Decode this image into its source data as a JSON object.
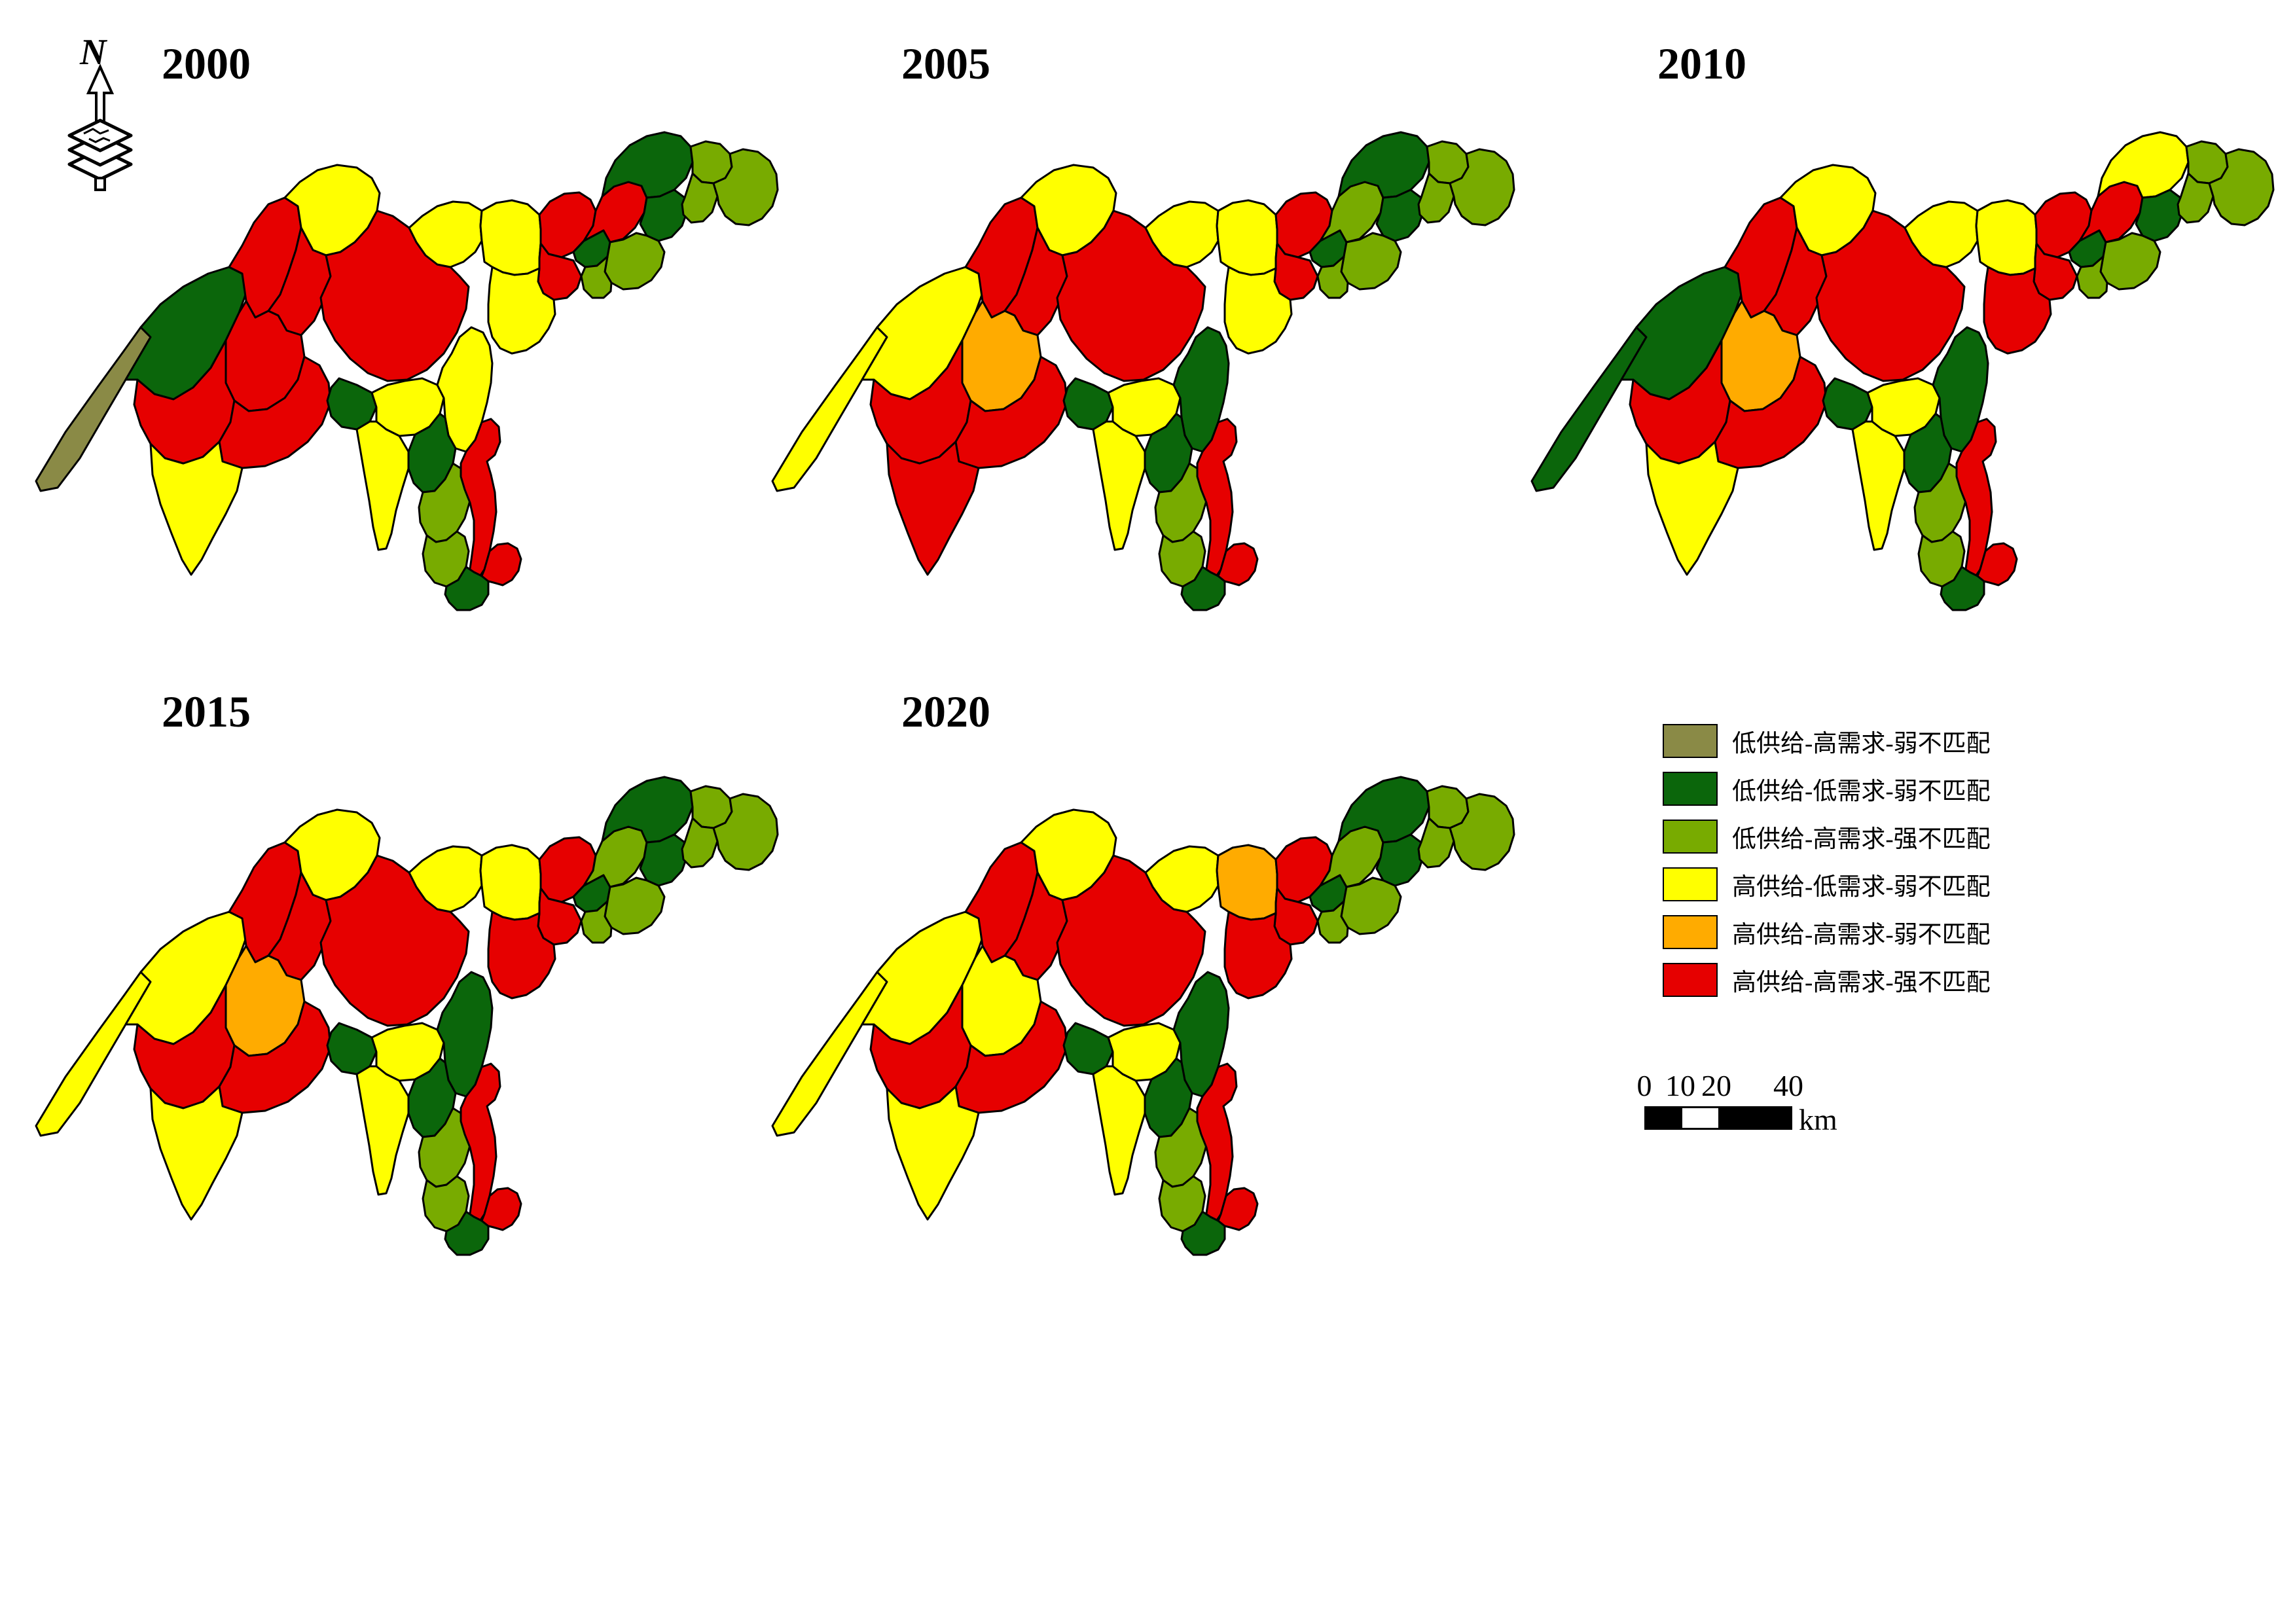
{
  "figure": {
    "background": "#FFFFFF",
    "type": "choropleth-time-series"
  },
  "colors": {
    "olive": "#8A8A46",
    "dark_green": "#0B660B",
    "light_green": "#78AB00",
    "yellow": "#FFFF00",
    "orange": "#FFAB00",
    "red": "#E60000",
    "outline": "#000000"
  },
  "north_arrow": {
    "label": "N"
  },
  "legend": {
    "items": [
      {
        "key": "olive",
        "label": "低供给-高需求-弱不匹配"
      },
      {
        "key": "dark_green",
        "label": "低供给-低需求-弱不匹配"
      },
      {
        "key": "light_green",
        "label": "低供给-高需求-强不匹配"
      },
      {
        "key": "yellow",
        "label": "高供给-低需求-弱不匹配"
      },
      {
        "key": "orange",
        "label": "高供给-高需求-弱不匹配"
      },
      {
        "key": "red",
        "label": "高供给-高需求-强不匹配"
      }
    ]
  },
  "scale_bar": {
    "ticks": [
      "0",
      "10",
      "20",
      "40"
    ],
    "unit": "km",
    "segments": [
      {
        "from": 0,
        "to": 10,
        "fill": "black"
      },
      {
        "from": 10,
        "to": 20,
        "fill": "white"
      },
      {
        "from": 20,
        "to": 40,
        "fill": "black"
      }
    ]
  },
  "maps": [
    {
      "year": "2000",
      "fills": {
        "west-strip": "olive",
        "west-inner": "dark_green",
        "northwest-upland": "red",
        "north-yellow": "yellow",
        "centerwest-basin": "red",
        "west-red": "red",
        "southwest-red": "red",
        "southwest-triangle": "yellow",
        "center-nw-red": "red",
        "center-big-red": "red",
        "center-small-green": "dark_green",
        "north-center": "yellow",
        "east-gate": "yellow",
        "junction-upper": "red",
        "junction-lower": "red",
        "east-flank": "yellow",
        "center-east": "yellow",
        "south-hook": "yellow",
        "south-green": "dark_green",
        "south-light-upper": "light_green",
        "south-light-lower": "light_green",
        "south-ribbon": "red",
        "south-bottom-green": "dark_green",
        "south-bottom-red": "red",
        "center-vertical-green": "yellow",
        "ne-top": "dark_green",
        "ne-mid-green": "dark_green",
        "ne-west": "red",
        "ne-left-green": "dark_green",
        "ne-left-light": "light_green",
        "ne-top-right": "light_green",
        "ne-east": "light_green",
        "ne-mid-light": "light_green",
        "ne-bottom": "light_green"
      }
    },
    {
      "year": "2005",
      "fills": {
        "west-strip": "yellow",
        "west-inner": "yellow",
        "northwest-upland": "red",
        "north-yellow": "yellow",
        "centerwest-basin": "orange",
        "west-red": "red",
        "southwest-red": "red",
        "southwest-triangle": "red",
        "center-nw-red": "red",
        "center-big-red": "red",
        "center-small-green": "dark_green",
        "north-center": "yellow",
        "east-gate": "yellow",
        "junction-upper": "red",
        "junction-lower": "red",
        "east-flank": "yellow",
        "center-east": "yellow",
        "south-hook": "yellow",
        "south-green": "dark_green",
        "south-light-upper": "light_green",
        "south-light-lower": "light_green",
        "south-ribbon": "red",
        "south-bottom-green": "dark_green",
        "south-bottom-red": "red",
        "center-vertical-green": "dark_green",
        "ne-top": "dark_green",
        "ne-mid-green": "dark_green",
        "ne-west": "light_green",
        "ne-left-green": "dark_green",
        "ne-left-light": "light_green",
        "ne-top-right": "light_green",
        "ne-east": "light_green",
        "ne-mid-light": "light_green",
        "ne-bottom": "light_green"
      }
    },
    {
      "year": "2010",
      "fills": {
        "west-strip": "dark_green",
        "west-inner": "dark_green",
        "northwest-upland": "red",
        "north-yellow": "yellow",
        "centerwest-basin": "orange",
        "west-red": "red",
        "southwest-red": "red",
        "southwest-triangle": "yellow",
        "center-nw-red": "red",
        "center-big-red": "red",
        "center-small-green": "dark_green",
        "north-center": "yellow",
        "east-gate": "yellow",
        "junction-upper": "red",
        "junction-lower": "red",
        "east-flank": "red",
        "center-east": "yellow",
        "south-hook": "yellow",
        "south-green": "dark_green",
        "south-light-upper": "light_green",
        "south-light-lower": "light_green",
        "south-ribbon": "red",
        "south-bottom-green": "dark_green",
        "south-bottom-red": "red",
        "center-vertical-green": "dark_green",
        "ne-top": "yellow",
        "ne-mid-green": "dark_green",
        "ne-west": "red",
        "ne-left-green": "dark_green",
        "ne-left-light": "light_green",
        "ne-top-right": "light_green",
        "ne-east": "light_green",
        "ne-mid-light": "light_green",
        "ne-bottom": "light_green"
      }
    },
    {
      "year": "2015",
      "fills": {
        "west-strip": "yellow",
        "west-inner": "yellow",
        "northwest-upland": "red",
        "north-yellow": "yellow",
        "centerwest-basin": "orange",
        "west-red": "red",
        "southwest-red": "red",
        "southwest-triangle": "yellow",
        "center-nw-red": "red",
        "center-big-red": "red",
        "center-small-green": "dark_green",
        "north-center": "yellow",
        "east-gate": "yellow",
        "junction-upper": "red",
        "junction-lower": "red",
        "east-flank": "red",
        "center-east": "yellow",
        "south-hook": "yellow",
        "south-green": "dark_green",
        "south-light-upper": "light_green",
        "south-light-lower": "light_green",
        "south-ribbon": "red",
        "south-bottom-green": "dark_green",
        "south-bottom-red": "red",
        "center-vertical-green": "dark_green",
        "ne-top": "dark_green",
        "ne-mid-green": "dark_green",
        "ne-west": "light_green",
        "ne-left-green": "dark_green",
        "ne-left-light": "light_green",
        "ne-top-right": "light_green",
        "ne-east": "light_green",
        "ne-mid-light": "light_green",
        "ne-bottom": "light_green"
      }
    },
    {
      "year": "2020",
      "fills": {
        "west-strip": "yellow",
        "west-inner": "yellow",
        "northwest-upland": "red",
        "north-yellow": "yellow",
        "centerwest-basin": "yellow",
        "west-red": "red",
        "southwest-red": "red",
        "southwest-triangle": "yellow",
        "center-nw-red": "red",
        "center-big-red": "red",
        "center-small-green": "dark_green",
        "north-center": "yellow",
        "east-gate": "orange",
        "junction-upper": "red",
        "junction-lower": "red",
        "east-flank": "red",
        "center-east": "yellow",
        "south-hook": "yellow",
        "south-green": "dark_green",
        "south-light-upper": "light_green",
        "south-light-lower": "light_green",
        "south-ribbon": "red",
        "south-bottom-green": "dark_green",
        "south-bottom-red": "red",
        "center-vertical-green": "dark_green",
        "ne-top": "dark_green",
        "ne-mid-green": "dark_green",
        "ne-west": "light_green",
        "ne-left-green": "dark_green",
        "ne-left-light": "light_green",
        "ne-top-right": "light_green",
        "ne-east": "light_green",
        "ne-mid-light": "light_green",
        "ne-bottom": "light_green"
      }
    }
  ]
}
